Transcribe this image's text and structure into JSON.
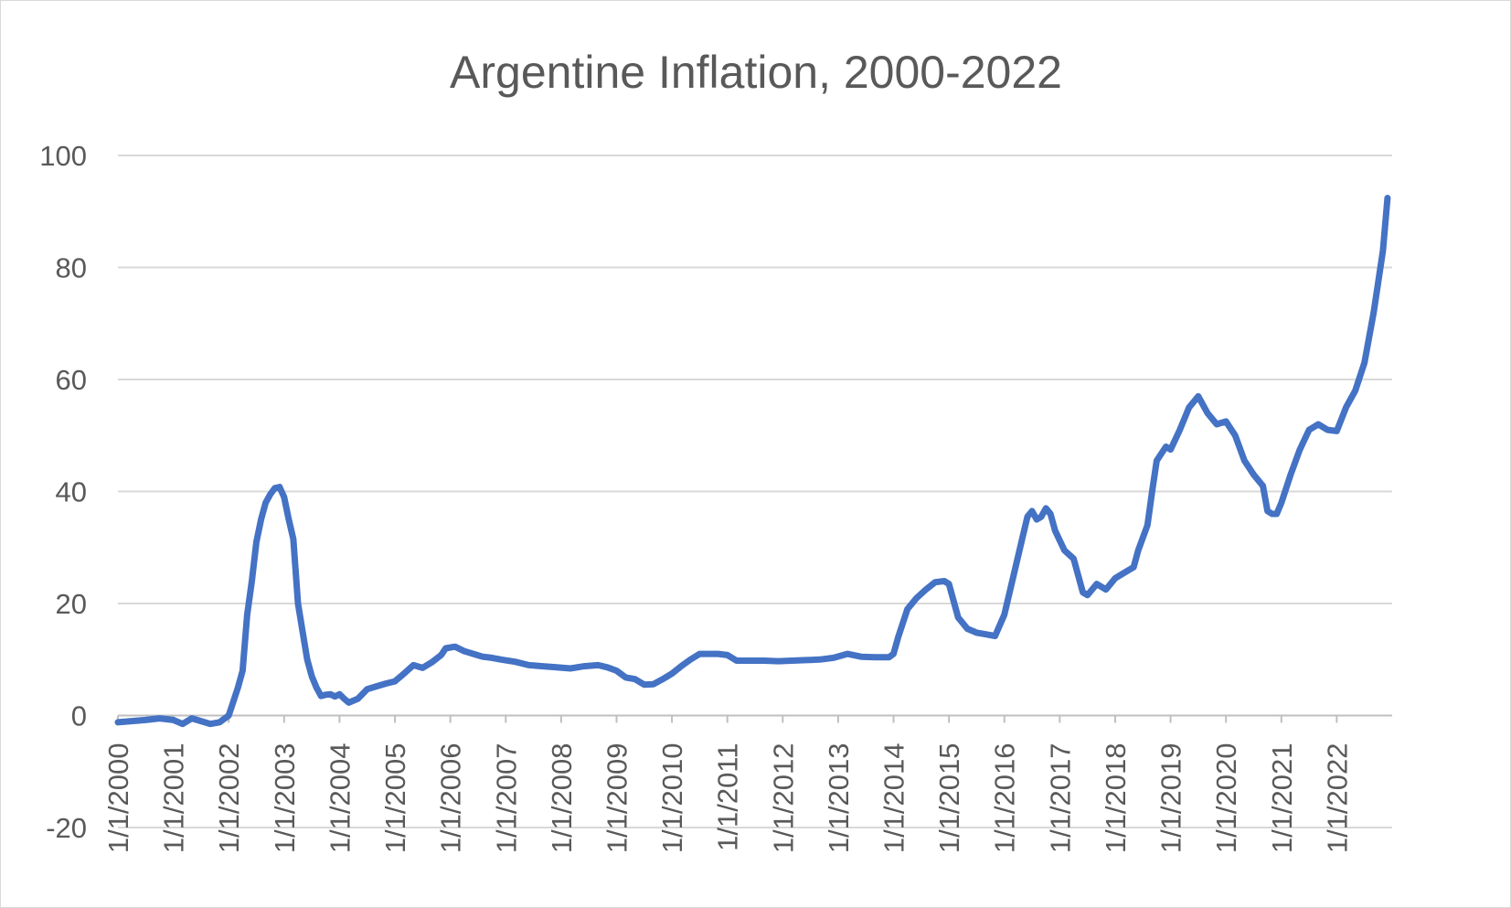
{
  "chart_data": {
    "type": "line",
    "title": "Argentine Inflation, 2000-2022",
    "xlabel": "",
    "ylabel": "",
    "ylim": [
      -20,
      100
    ],
    "yticks": [
      -20,
      0,
      20,
      40,
      60,
      80,
      100
    ],
    "x_tick_labels": [
      "1/1/2000",
      "1/1/2001",
      "1/1/2002",
      "1/1/2003",
      "1/1/2004",
      "1/1/2005",
      "1/1/2006",
      "1/1/2007",
      "1/1/2008",
      "1/1/2009",
      "1/1/2010",
      "1/1/2011",
      "1/1/2012",
      "1/1/2013",
      "1/1/2014",
      "1/1/2015",
      "1/1/2016",
      "1/1/2017",
      "1/1/2018",
      "1/1/2019",
      "1/1/2020",
      "1/1/2021",
      "1/1/2022"
    ],
    "grid": true,
    "legend": "none",
    "line_color": "#4472c4",
    "series": [
      {
        "x": [
          "2000-01",
          "2000-04",
          "2000-07",
          "2000-10",
          "2001-01",
          "2001-03",
          "2001-05",
          "2001-07",
          "2001-09",
          "2001-11",
          "2002-01",
          "2002-02",
          "2002-03",
          "2002-04",
          "2002-05",
          "2002-06",
          "2002-07",
          "2002-08",
          "2002-09",
          "2002-10",
          "2002-11",
          "2002-12",
          "2003-01",
          "2003-02",
          "2003-03",
          "2003-04",
          "2003-05",
          "2003-06",
          "2003-07",
          "2003-08",
          "2003-09",
          "2003-10",
          "2003-11",
          "2003-12",
          "2004-01",
          "2004-02",
          "2004-03",
          "2004-05",
          "2004-07",
          "2004-09",
          "2004-11",
          "2005-01",
          "2005-03",
          "2005-05",
          "2005-07",
          "2005-09",
          "2005-11",
          "2005-12",
          "2006-02",
          "2006-04",
          "2006-06",
          "2006-08",
          "2006-10",
          "2006-12",
          "2007-03",
          "2007-06",
          "2007-09",
          "2007-12",
          "2008-03",
          "2008-06",
          "2008-09",
          "2008-11",
          "2009-01",
          "2009-03",
          "2009-05",
          "2009-07",
          "2009-09",
          "2009-11",
          "2010-01",
          "2010-03",
          "2010-05",
          "2010-07",
          "2010-09",
          "2010-11",
          "2011-01",
          "2011-03",
          "2011-06",
          "2011-09",
          "2011-12",
          "2012-03",
          "2012-06",
          "2012-09",
          "2012-12",
          "2013-03",
          "2013-06",
          "2013-09",
          "2013-12",
          "2014-01",
          "2014-02",
          "2014-04",
          "2014-06",
          "2014-08",
          "2014-10",
          "2014-12",
          "2015-01",
          "2015-03",
          "2015-05",
          "2015-07",
          "2015-09",
          "2015-11",
          "2016-01",
          "2016-03",
          "2016-05",
          "2016-06",
          "2016-07",
          "2016-08",
          "2016-09",
          "2016-10",
          "2016-11",
          "2016-12",
          "2017-02",
          "2017-04",
          "2017-06",
          "2017-07",
          "2017-09",
          "2017-11",
          "2018-01",
          "2018-03",
          "2018-05",
          "2018-06",
          "2018-08",
          "2018-09",
          "2018-10",
          "2018-12",
          "2019-01",
          "2019-03",
          "2019-05",
          "2019-07",
          "2019-09",
          "2019-11",
          "2020-01",
          "2020-03",
          "2020-05",
          "2020-07",
          "2020-09",
          "2020-10",
          "2020-11",
          "2020-12",
          "2021-01",
          "2021-03",
          "2021-05",
          "2021-07",
          "2021-09",
          "2021-11",
          "2022-01",
          "2022-03",
          "2022-05",
          "2022-07",
          "2022-09",
          "2022-11",
          "2022-12"
        ],
        "y": [
          -1.2,
          -1.0,
          -0.8,
          -0.5,
          -0.8,
          -1.5,
          -0.5,
          -1.0,
          -1.5,
          -1.2,
          0,
          2.5,
          5.0,
          8.0,
          18.0,
          24.0,
          31.0,
          35.0,
          38.0,
          39.5,
          40.6,
          40.8,
          39.0,
          35.0,
          31.5,
          20.0,
          15.0,
          10.0,
          7.0,
          5.0,
          3.5,
          3.7,
          3.8,
          3.4,
          3.8,
          3.0,
          2.3,
          3.0,
          4.7,
          5.2,
          5.7,
          6.1,
          7.5,
          9.0,
          8.5,
          9.5,
          10.8,
          12.0,
          12.3,
          11.5,
          11.0,
          10.5,
          10.3,
          10.0,
          9.6,
          9.0,
          8.8,
          8.6,
          8.4,
          8.8,
          9.0,
          8.6,
          8.0,
          6.8,
          6.5,
          5.5,
          5.6,
          6.5,
          7.5,
          8.8,
          10.0,
          11.0,
          11.0,
          11.0,
          10.8,
          9.8,
          9.8,
          9.8,
          9.7,
          9.8,
          9.9,
          10.0,
          10.3,
          11.0,
          10.5,
          10.4,
          10.4,
          11.0,
          14.0,
          19.0,
          21.0,
          22.5,
          23.8,
          24.0,
          23.5,
          17.5,
          15.5,
          14.8,
          14.5,
          14.2,
          18.0,
          25.0,
          32.0,
          35.5,
          36.5,
          35.0,
          35.5,
          37.0,
          36.0,
          33.0,
          29.5,
          28.0,
          22.0,
          21.5,
          23.5,
          22.5,
          24.5,
          25.5,
          26.5,
          29.5,
          34.0,
          40.0,
          45.5,
          48.0,
          47.5,
          51.0,
          55.0,
          57.0,
          54.0,
          52.0,
          52.5,
          50.0,
          45.5,
          43.0,
          41.0,
          36.5,
          36.0,
          36.0,
          38.0,
          43.0,
          47.5,
          51.0,
          52.0,
          51.0,
          50.8,
          55.0,
          58.0,
          63.0,
          72.0,
          83.0,
          92.4
        ]
      }
    ]
  }
}
